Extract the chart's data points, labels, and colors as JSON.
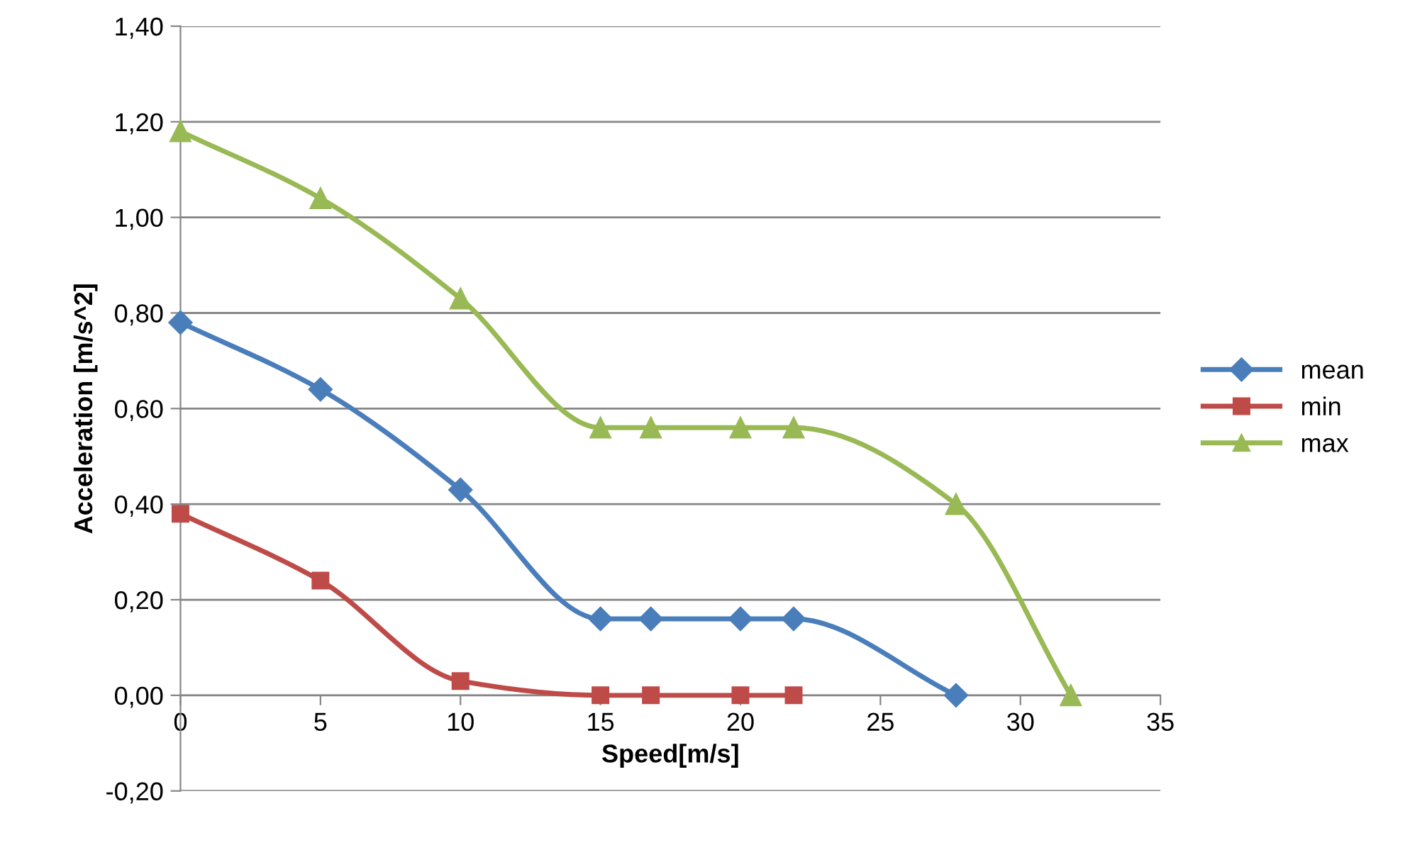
{
  "chart_data": {
    "type": "line",
    "xlabel": "Speed[m/s]",
    "ylabel": "Acceleration [m/s^2]",
    "xlim": [
      0,
      35
    ],
    "xticks": [
      0,
      5,
      10,
      15,
      20,
      25,
      30,
      35
    ],
    "ylim": [
      -0.2,
      1.4
    ],
    "yticks": [
      {
        "value": -0.2,
        "label": "-0,20"
      },
      {
        "value": 0,
        "label": "0,00"
      },
      {
        "value": 0.2,
        "label": "0,20"
      },
      {
        "value": 0.4,
        "label": "0,40"
      },
      {
        "value": 0.6,
        "label": "0,60"
      },
      {
        "value": 0.8,
        "label": "0,80"
      },
      {
        "value": 1.0,
        "label": "1,00"
      },
      {
        "value": 1.2,
        "label": "1,20"
      },
      {
        "value": 1.4,
        "label": "1,40"
      }
    ],
    "grid": "y",
    "legend": "right",
    "line_style": "solid",
    "series": [
      {
        "name": "mean",
        "color": "#4a7ebb",
        "marker": "diamond",
        "x": [
          0,
          5,
          10,
          15,
          16.8,
          20,
          21.9,
          27.7
        ],
        "values": [
          0.78,
          0.64,
          0.43,
          0.16,
          0.16,
          0.16,
          0.16,
          0.0
        ]
      },
      {
        "name": "min",
        "color": "#be4b48",
        "marker": "square",
        "x": [
          0,
          5,
          10,
          15,
          16.8,
          20,
          21.9
        ],
        "values": [
          0.38,
          0.24,
          0.03,
          0.0,
          0.0,
          0.0,
          0.0
        ]
      },
      {
        "name": "max",
        "color": "#98b954",
        "marker": "triangle",
        "x": [
          0,
          5,
          10,
          15,
          16.8,
          20,
          21.9,
          27.7,
          31.8
        ],
        "values": [
          1.18,
          1.04,
          0.83,
          0.56,
          0.56,
          0.56,
          0.56,
          0.4,
          0.0
        ]
      }
    ]
  }
}
